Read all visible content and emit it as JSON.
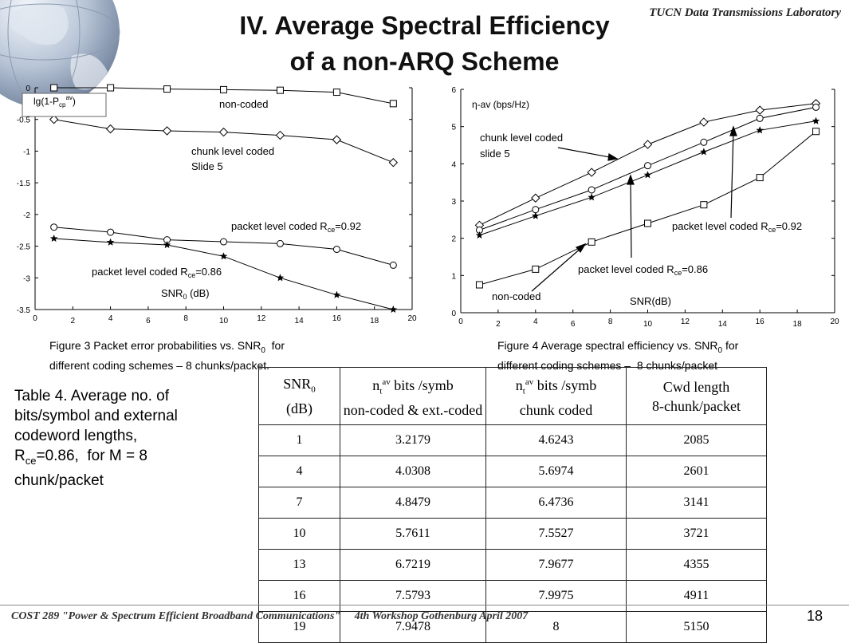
{
  "header": {
    "lab": "TUCN Data Transmissions Laboratory",
    "title_line1": "IV. Average Spectral Efficiency",
    "title_line2": "of a non-ARQ Scheme"
  },
  "chart_data": [
    {
      "type": "line",
      "ylabel_main": "lg(1-P",
      "ylabel_sub": "cp",
      "ylabel_sup": "av",
      "ylabel_end": ")",
      "xlabel_main": "SNR",
      "xlabel_sub": "0",
      "xlabel_end": " (dB)",
      "xlim": [
        0,
        20
      ],
      "ylim": [
        -3.5,
        0
      ],
      "xticks": [
        "0",
        "2",
        "4",
        "6",
        "8",
        "10",
        "12",
        "14",
        "16",
        "18",
        "20"
      ],
      "yticks": [
        "0",
        "-0.5",
        "-1",
        "-1.5",
        "-2",
        "-2.5",
        "-3",
        "-3.5"
      ],
      "series": [
        {
          "name": "non-coded",
          "marker": "square",
          "x": [
            1,
            4,
            7,
            10,
            13,
            16,
            19
          ],
          "y": [
            0.0,
            0.0,
            -0.02,
            -0.03,
            -0.04,
            -0.07,
            -0.25
          ]
        },
        {
          "name": "chunk level coded Slide 5",
          "marker": "diamond",
          "x": [
            1,
            4,
            7,
            10,
            13,
            16,
            19
          ],
          "y": [
            -0.5,
            -0.65,
            -0.68,
            -0.7,
            -0.75,
            -0.82,
            -1.18
          ]
        },
        {
          "name": "packet level coded Rce=0.92",
          "marker": "circle",
          "x": [
            1,
            4,
            7,
            10,
            13,
            16,
            19
          ],
          "y": [
            -2.2,
            -2.28,
            -2.4,
            -2.43,
            -2.46,
            -2.55,
            -2.8
          ]
        },
        {
          "name": "packet level coded Rce=0.86",
          "marker": "star",
          "x": [
            1,
            4,
            7,
            10,
            13,
            16,
            19
          ],
          "y": [
            -2.38,
            -2.44,
            -2.48,
            -2.66,
            -3.0,
            -3.27,
            -3.5
          ]
        }
      ],
      "annotations": {
        "noncoded": "non-coded",
        "chunk1": "chunk level coded",
        "chunk2": "Slide 5",
        "p92_main": "packet level coded R",
        "p92_sub": "ce",
        "p92_end": "=0.92",
        "p86_main": "packet level coded R",
        "p86_sub": "ce",
        "p86_end": "=0.86"
      },
      "caption_l1_main": "Figure 3 Packet error probabilities vs. SNR",
      "caption_l1_sub": "0",
      "caption_l1_end": "  for",
      "caption_l2": "different coding schemes – 8 chunks/packet."
    },
    {
      "type": "line",
      "ylabel": "η-av (bps/Hz)",
      "xlabel": "SNR(dB)",
      "xlim": [
        0,
        20
      ],
      "ylim": [
        0,
        6
      ],
      "xticks": [
        "0",
        "2",
        "4",
        "6",
        "8",
        "10",
        "12",
        "14",
        "16",
        "18",
        "20"
      ],
      "yticks": [
        "0",
        "1",
        "2",
        "3",
        "4",
        "5",
        "6"
      ],
      "series": [
        {
          "name": "chunk level coded slide 5",
          "marker": "diamond",
          "x": [
            1,
            4,
            7,
            10,
            13,
            16,
            19
          ],
          "y": [
            2.35,
            3.08,
            3.77,
            4.52,
            5.12,
            5.44,
            5.62
          ]
        },
        {
          "name": "packet level coded Rce=0.92",
          "marker": "circle",
          "x": [
            1,
            4,
            7,
            10,
            13,
            16,
            19
          ],
          "y": [
            2.22,
            2.77,
            3.3,
            3.95,
            4.58,
            5.22,
            5.52
          ]
        },
        {
          "name": "packet level coded Rce=0.86",
          "marker": "star",
          "x": [
            1,
            4,
            7,
            10,
            13,
            16,
            19
          ],
          "y": [
            2.08,
            2.6,
            3.1,
            3.7,
            4.32,
            4.9,
            5.15
          ]
        },
        {
          "name": "non-coded",
          "marker": "square",
          "x": [
            1,
            4,
            7,
            10,
            13,
            16,
            19
          ],
          "y": [
            0.75,
            1.17,
            1.9,
            2.4,
            2.9,
            3.63,
            4.87
          ]
        }
      ],
      "annotations": {
        "chunk1": "chunk level coded",
        "chunk2": "slide 5",
        "p92_main": "packet level coded R",
        "p92_sub": "ce",
        "p92_end": "=0.92",
        "p86_main": "packet level coded R",
        "p86_sub": "ce",
        "p86_end": "=0.86",
        "noncoded": "non-coded"
      },
      "caption_l1_main": "Figure 4 Average spectral efficiency vs. SNR",
      "caption_l1_sub": "0",
      "caption_l1_end": " for",
      "caption_l2": "different coding schemes –  8 chunks/packet"
    }
  ],
  "table_caption": {
    "line1": "Table 4. Average no. of",
    "line2": "bits/symbol and external",
    "line3": "codeword lengths,",
    "l4_main": "R",
    "l4_sub": "ce",
    "l4_end": "=0.86,  for M = 8",
    "line5": "chunk/packet"
  },
  "table": {
    "h1_main": "SNR",
    "h1_sub": "0",
    "h1_l2": "(dB)",
    "h2_main": "n",
    "h2_sub": "t",
    "h2_sup": "av",
    "h2_end": " bits /symb",
    "h2_l2": "non-coded & ext.-coded",
    "h3_main": "n",
    "h3_sub": "t",
    "h3_sup": "av",
    "h3_end": " bits /symb",
    "h3_l2": "chunk coded",
    "h4_l1": "Cwd length",
    "h4_l2": "8-chunk/packet",
    "rows": [
      [
        "1",
        "3.2179",
        "4.6243",
        "2085"
      ],
      [
        "4",
        "4.0308",
        "5.6974",
        "2601"
      ],
      [
        "7",
        "4.8479",
        "6.4736",
        "3141"
      ],
      [
        "10",
        "5.7611",
        "7.5527",
        "3721"
      ],
      [
        "13",
        "6.7219",
        "7.9677",
        "4355"
      ],
      [
        "16",
        "7.5793",
        "7.9975",
        "4911"
      ],
      [
        "19",
        "7.9478",
        "8",
        "5150"
      ]
    ]
  },
  "footer": {
    "text": "COST 289 \"Power & Spectrum Efficient Broadband Communications\"     4th Workshop Gothenburg April 2007",
    "page": "18"
  }
}
